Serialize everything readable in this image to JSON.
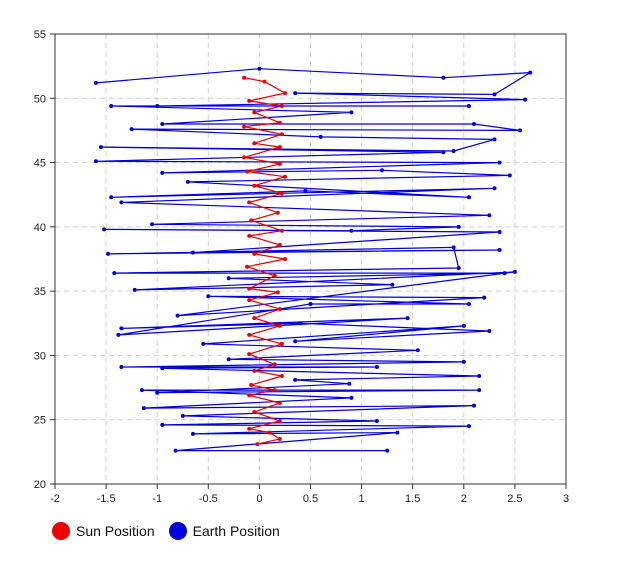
{
  "chart_data": {
    "type": "line",
    "title": "",
    "xlabel": "",
    "ylabel": "",
    "xlim": [
      -2,
      3
    ],
    "ylim": [
      20,
      55
    ],
    "x_ticks": [
      "-2",
      "-1.5",
      "-1",
      "-0.5",
      "0",
      "0.5",
      "1",
      "1.5",
      "2",
      "2.5",
      "3"
    ],
    "y_ticks": [
      "20",
      "25",
      "30",
      "35",
      "40",
      "45",
      "50",
      "55"
    ],
    "grid": true,
    "legend_position": "bottom-left",
    "series": [
      {
        "name": "Earth Position",
        "color": "#0000dd",
        "points": [
          [
            1.25,
            22.6
          ],
          [
            -0.82,
            22.6
          ],
          [
            1.35,
            24.0
          ],
          [
            -0.65,
            23.9
          ],
          [
            2.05,
            24.5
          ],
          [
            -0.95,
            24.6
          ],
          [
            1.15,
            24.9
          ],
          [
            -0.75,
            25.3
          ],
          [
            2.1,
            26.1
          ],
          [
            -1.13,
            25.9
          ],
          [
            0.9,
            26.7
          ],
          [
            -1.15,
            27.3
          ],
          [
            2.15,
            27.3
          ],
          [
            -1.0,
            27.1
          ],
          [
            0.88,
            27.8
          ],
          [
            0.35,
            28.1
          ],
          [
            2.15,
            28.4
          ],
          [
            -0.95,
            29.0
          ],
          [
            1.15,
            29.1
          ],
          [
            -1.35,
            29.1
          ],
          [
            2.0,
            29.5
          ],
          [
            -0.3,
            29.7
          ],
          [
            1.55,
            30.4
          ],
          [
            -0.55,
            30.9
          ],
          [
            2.0,
            32.3
          ],
          [
            0.35,
            31.1
          ],
          [
            2.25,
            31.9
          ],
          [
            0.4,
            32.5
          ],
          [
            -1.35,
            32.1
          ],
          [
            1.45,
            32.9
          ],
          [
            -1.38,
            31.6
          ],
          [
            0.5,
            34.0
          ],
          [
            2.05,
            34.0
          ],
          [
            -0.5,
            34.6
          ],
          [
            2.2,
            34.5
          ],
          [
            -0.8,
            33.1
          ],
          [
            2.5,
            36.5
          ],
          [
            -1.22,
            35.1
          ],
          [
            1.3,
            35.5
          ],
          [
            -0.3,
            36.0
          ],
          [
            2.4,
            36.4
          ],
          [
            -1.42,
            36.4
          ],
          [
            1.95,
            36.8
          ],
          [
            1.9,
            38.4
          ],
          [
            -1.48,
            37.9
          ],
          [
            2.35,
            38.2
          ],
          [
            -0.65,
            38.0
          ],
          [
            2.35,
            39.6
          ],
          [
            -1.52,
            39.8
          ],
          [
            0.9,
            39.7
          ],
          [
            1.95,
            40.0
          ],
          [
            -1.05,
            40.2
          ],
          [
            2.25,
            40.9
          ],
          [
            -1.35,
            41.9
          ],
          [
            2.3,
            43.0
          ],
          [
            -1.45,
            42.3
          ],
          [
            0.45,
            42.8
          ],
          [
            2.05,
            42.3
          ],
          [
            -0.7,
            43.5
          ],
          [
            2.45,
            44.0
          ],
          [
            1.2,
            44.4
          ],
          [
            -0.95,
            44.2
          ],
          [
            2.35,
            45.0
          ],
          [
            -1.6,
            45.1
          ],
          [
            1.8,
            45.8
          ],
          [
            -1.55,
            46.2
          ],
          [
            1.9,
            45.9
          ],
          [
            2.3,
            46.8
          ],
          [
            0.6,
            47.0
          ],
          [
            -1.25,
            47.6
          ],
          [
            2.55,
            47.5
          ],
          [
            2.1,
            48.0
          ],
          [
            -0.95,
            48.0
          ],
          [
            0.9,
            48.9
          ],
          [
            -1.45,
            49.4
          ],
          [
            2.05,
            49.4
          ],
          [
            -1.0,
            49.4
          ],
          [
            2.6,
            49.9
          ],
          [
            0.35,
            50.4
          ],
          [
            2.3,
            50.3
          ],
          [
            2.65,
            52.0
          ],
          [
            1.8,
            51.6
          ],
          [
            0.0,
            52.3
          ],
          [
            -1.6,
            51.2
          ]
        ]
      },
      {
        "name": "Sun Position",
        "color": "#ee0000",
        "points": [
          [
            -0.02,
            23.1
          ],
          [
            0.2,
            23.5
          ],
          [
            0.1,
            24.0
          ],
          [
            -0.1,
            24.3
          ],
          [
            0.2,
            24.9
          ],
          [
            -0.05,
            25.6
          ],
          [
            0.2,
            26.3
          ],
          [
            -0.1,
            26.9
          ],
          [
            0.15,
            27.3
          ],
          [
            -0.08,
            27.7
          ],
          [
            0.22,
            28.4
          ],
          [
            -0.05,
            28.8
          ],
          [
            0.15,
            29.3
          ],
          [
            -0.1,
            30.1
          ],
          [
            0.22,
            30.9
          ],
          [
            -0.1,
            31.6
          ],
          [
            0.2,
            32.3
          ],
          [
            -0.05,
            32.9
          ],
          [
            0.2,
            33.6
          ],
          [
            -0.1,
            34.3
          ],
          [
            0.18,
            34.9
          ],
          [
            -0.1,
            35.2
          ],
          [
            0.15,
            36.2
          ],
          [
            -0.12,
            36.9
          ],
          [
            0.25,
            37.5
          ],
          [
            -0.05,
            37.9
          ],
          [
            0.2,
            38.6
          ],
          [
            -0.1,
            39.3
          ],
          [
            0.22,
            39.7
          ],
          [
            -0.08,
            40.5
          ],
          [
            0.18,
            41.1
          ],
          [
            -0.1,
            41.9
          ],
          [
            0.22,
            42.6
          ],
          [
            -0.05,
            43.2
          ],
          [
            0.25,
            43.9
          ],
          [
            -0.12,
            44.3
          ],
          [
            0.2,
            44.9
          ],
          [
            -0.15,
            45.4
          ],
          [
            0.2,
            46.2
          ],
          [
            -0.05,
            46.5
          ],
          [
            0.22,
            47.2
          ],
          [
            -0.15,
            47.8
          ],
          [
            0.2,
            48.1
          ],
          [
            -0.05,
            48.9
          ],
          [
            0.22,
            49.4
          ],
          [
            -0.1,
            49.8
          ],
          [
            0.25,
            50.4
          ],
          [
            0.05,
            51.3
          ],
          [
            -0.15,
            51.6
          ]
        ]
      }
    ]
  }
}
